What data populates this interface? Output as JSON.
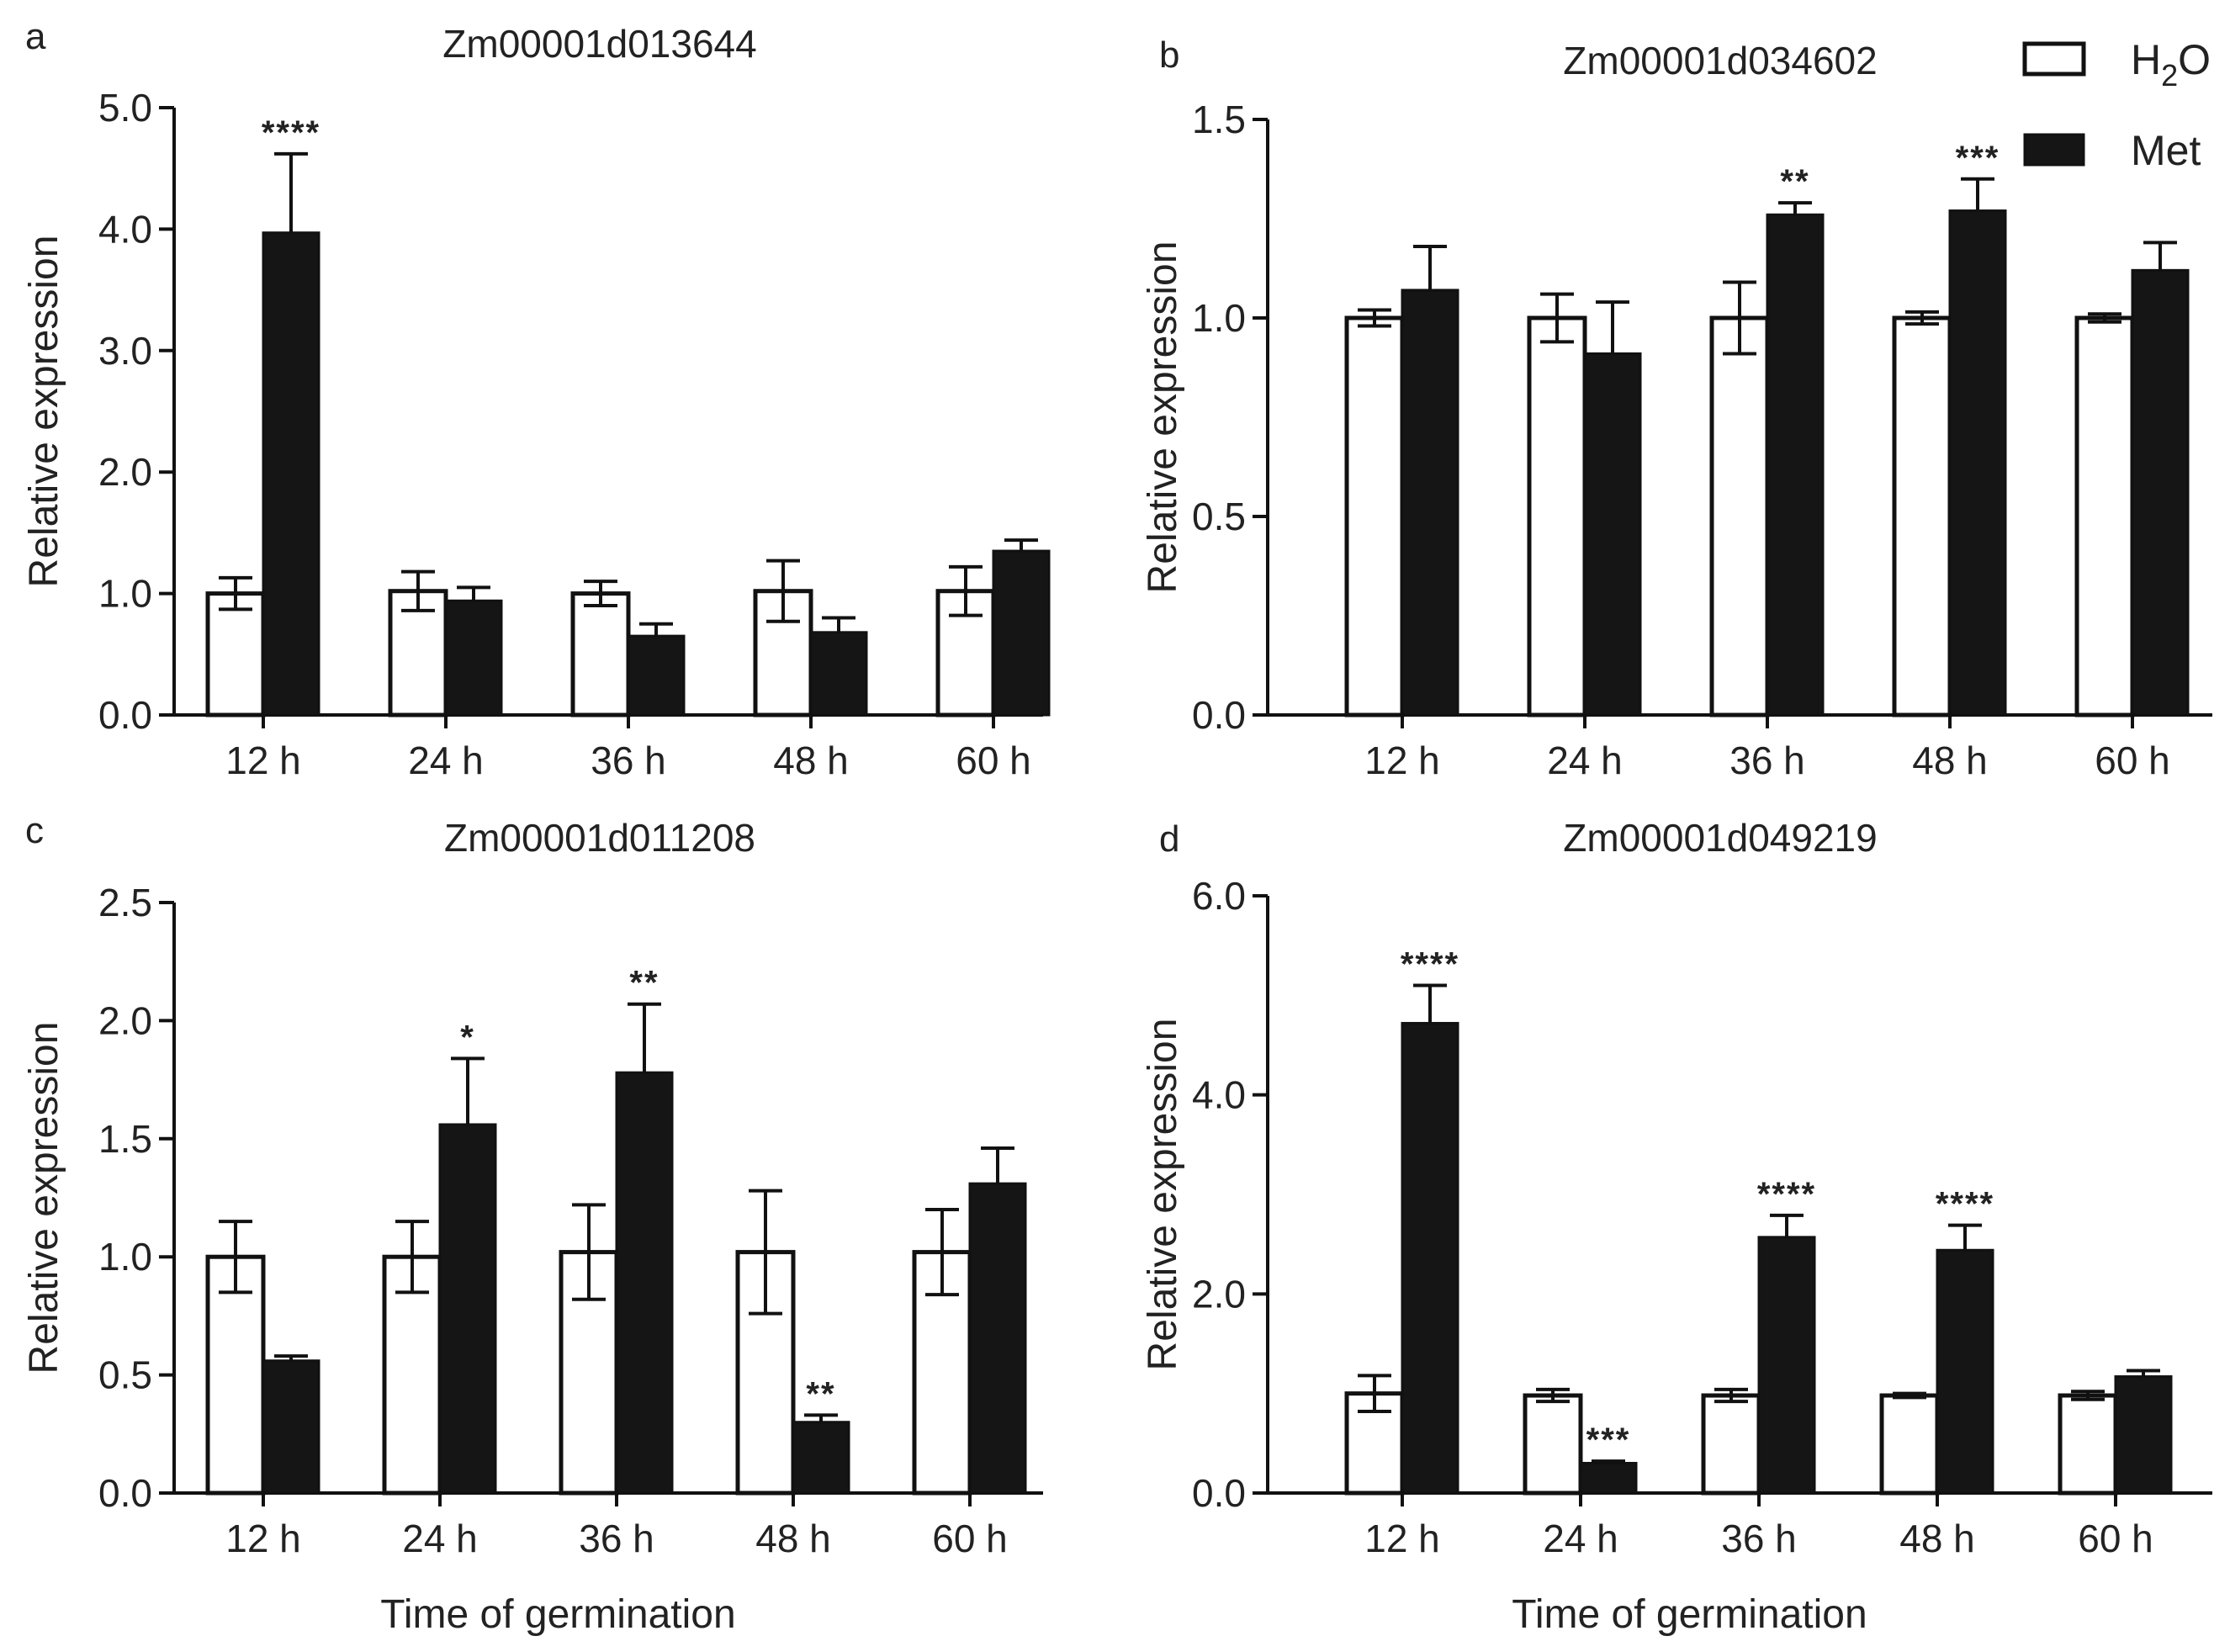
{
  "chart_data": [
    {
      "type": "bar",
      "panel": "a",
      "title": "Zm00001d013644",
      "xlabel": "",
      "ylabel": "Relative expression",
      "ylim": [
        0,
        5.0
      ],
      "yticks": [
        "0.0",
        "1.0",
        "2.0",
        "3.0",
        "4.0",
        "5.0"
      ],
      "categories": [
        "12 h",
        "24 h",
        "36 h",
        "48 h",
        "60 h"
      ],
      "series": [
        {
          "name": "H2O",
          "values": [
            1.0,
            1.02,
            1.0,
            1.02,
            1.02
          ],
          "errors": [
            0.13,
            0.16,
            0.1,
            0.25,
            0.2
          ]
        },
        {
          "name": "Met",
          "values": [
            3.97,
            0.94,
            0.65,
            0.68,
            1.35
          ],
          "errors": [
            0.65,
            0.11,
            0.1,
            0.12,
            0.09
          ]
        }
      ],
      "annotations": [
        {
          "category": "12 h",
          "text": "****"
        }
      ]
    },
    {
      "type": "bar",
      "panel": "b",
      "title": "Zm00001d034602",
      "xlabel": "",
      "ylabel": "Relative expression",
      "ylim": [
        0,
        1.5
      ],
      "yticks": [
        "0.0",
        "0.5",
        "1.0",
        "1.5"
      ],
      "categories": [
        "12 h",
        "24 h",
        "36 h",
        "48 h",
        "60 h"
      ],
      "series": [
        {
          "name": "H2O",
          "values": [
            1.0,
            1.0,
            1.0,
            1.0,
            1.0
          ],
          "errors": [
            0.02,
            0.06,
            0.09,
            0.015,
            0.01
          ]
        },
        {
          "name": "Met",
          "values": [
            1.07,
            0.91,
            1.26,
            1.27,
            1.12
          ],
          "errors": [
            0.11,
            0.13,
            0.03,
            0.08,
            0.07
          ]
        }
      ],
      "annotations": [
        {
          "category": "36 h",
          "text": "**"
        },
        {
          "category": "48 h",
          "text": "***"
        }
      ]
    },
    {
      "type": "bar",
      "panel": "c",
      "title": "Zm00001d011208",
      "xlabel": "Time of germination",
      "ylabel": "Relative expression",
      "ylim": [
        0,
        2.5
      ],
      "yticks": [
        "0.0",
        "0.5",
        "1.0",
        "1.5",
        "2.0",
        "2.5"
      ],
      "categories": [
        "12 h",
        "24 h",
        "36 h",
        "48 h",
        "60 h"
      ],
      "series": [
        {
          "name": "H2O",
          "values": [
            1.0,
            1.0,
            1.02,
            1.02,
            1.02
          ],
          "errors": [
            0.15,
            0.15,
            0.2,
            0.26,
            0.18
          ]
        },
        {
          "name": "Met",
          "values": [
            0.56,
            1.56,
            1.78,
            0.3,
            1.31
          ],
          "errors": [
            0.02,
            0.28,
            0.29,
            0.03,
            0.15
          ]
        }
      ],
      "annotations": [
        {
          "category": "24 h",
          "text": "*"
        },
        {
          "category": "36 h",
          "text": "**"
        },
        {
          "category": "48 h",
          "text": "**"
        }
      ]
    },
    {
      "type": "bar",
      "panel": "d",
      "title": "Zm00001d049219",
      "xlabel": "Time of germination",
      "ylabel": "Relative expression",
      "ylim": [
        0,
        6.0
      ],
      "yticks": [
        "0.0",
        "2.0",
        "4.0",
        "6.0"
      ],
      "categories": [
        "12 h",
        "24 h",
        "36 h",
        "48 h",
        "60 h"
      ],
      "series": [
        {
          "name": "H2O",
          "values": [
            1.0,
            0.98,
            0.98,
            0.98,
            0.98
          ],
          "errors": [
            0.18,
            0.06,
            0.06,
            0.02,
            0.04
          ]
        },
        {
          "name": "Met",
          "values": [
            4.72,
            0.3,
            2.57,
            2.44,
            1.17
          ],
          "errors": [
            0.38,
            0.02,
            0.22,
            0.25,
            0.06
          ]
        }
      ],
      "annotations": [
        {
          "category": "12 h",
          "text": "****"
        },
        {
          "category": "24 h",
          "text": "***"
        },
        {
          "category": "36 h",
          "text": "****"
        },
        {
          "category": "48 h",
          "text": "****"
        }
      ]
    }
  ],
  "legend": {
    "h2o_main": "H",
    "h2o_sub": "2",
    "h2o_end": "O",
    "met": "Met"
  },
  "colors": {
    "h2o_fill": "#ffffff",
    "met_fill": "#151515"
  }
}
